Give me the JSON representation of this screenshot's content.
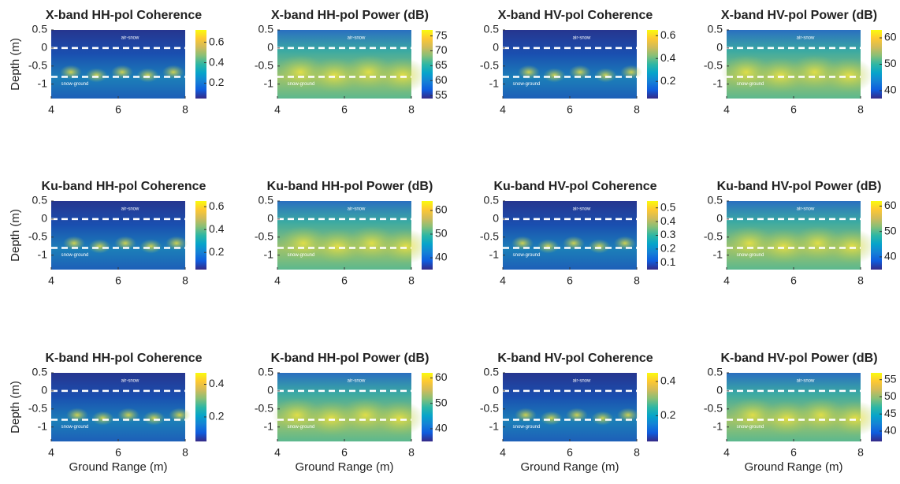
{
  "colormap": [
    "#352a87",
    "#0f5cdd",
    "#1481d6",
    "#06a4ca",
    "#2eb7a4",
    "#87bf77",
    "#d1bb59",
    "#fec832",
    "#f9fb0e"
  ],
  "chart_data": [
    {
      "type": "heatmap",
      "kind": "coherence",
      "title": "X-band HH-pol Coherence",
      "ylabel": "Depth (m)",
      "xlim": [
        4,
        8
      ],
      "xticks": [
        4,
        6,
        8
      ],
      "ylim": [
        -1.4,
        0.5
      ],
      "yticks": [
        0.5,
        0,
        -0.5,
        -1
      ],
      "clim": [
        0.05,
        0.72
      ],
      "cticks": [
        0.2,
        0.4,
        0.6
      ],
      "lines": [
        {
          "label": "air-snow",
          "y": 0
        },
        {
          "label": "snow-ground",
          "y": -0.8
        }
      ]
    },
    {
      "type": "heatmap",
      "kind": "power",
      "title": "X-band HH-pol Power (dB)",
      "xlim": [
        4,
        8
      ],
      "xticks": [
        4,
        6,
        8
      ],
      "ylim": [
        -1.4,
        0.5
      ],
      "yticks": [
        0.5,
        0,
        -0.5,
        -1
      ],
      "clim": [
        54,
        77
      ],
      "cticks": [
        55,
        60,
        65,
        70,
        75
      ],
      "lines": [
        {
          "label": "air-snow",
          "y": 0
        },
        {
          "label": "snow-ground",
          "y": -0.8
        }
      ]
    },
    {
      "type": "heatmap",
      "kind": "coherence",
      "title": "X-band HV-pol Coherence",
      "xlim": [
        4,
        8
      ],
      "xticks": [
        4,
        6,
        8
      ],
      "ylim": [
        -1.4,
        0.5
      ],
      "yticks": [
        0.5,
        0,
        -0.5,
        -1
      ],
      "clim": [
        0.05,
        0.65
      ],
      "cticks": [
        0.2,
        0.4,
        0.6
      ],
      "lines": [
        {
          "label": "air-snow",
          "y": 0
        },
        {
          "label": "snow-ground",
          "y": -0.8
        }
      ]
    },
    {
      "type": "heatmap",
      "kind": "power",
      "title": "X-band HV-pol Power (dB)",
      "xlim": [
        4,
        8
      ],
      "xticks": [
        4,
        6,
        8
      ],
      "ylim": [
        -1.4,
        0.5
      ],
      "yticks": [
        0.5,
        0,
        -0.5,
        -1
      ],
      "clim": [
        37,
        63
      ],
      "cticks": [
        40,
        50,
        60
      ],
      "lines": [
        {
          "label": "air-snow",
          "y": 0
        },
        {
          "label": "snow-ground",
          "y": -0.8
        }
      ]
    },
    {
      "type": "heatmap",
      "kind": "coherence",
      "title": "Ku-band HH-pol Coherence",
      "ylabel": "Depth (m)",
      "xlim": [
        4,
        8
      ],
      "xticks": [
        4,
        6,
        8
      ],
      "ylim": [
        -1.4,
        0.5
      ],
      "yticks": [
        0.5,
        0,
        -0.5,
        -1
      ],
      "clim": [
        0.05,
        0.65
      ],
      "cticks": [
        0.2,
        0.4,
        0.6
      ],
      "lines": [
        {
          "label": "air-snow",
          "y": 0
        },
        {
          "label": "snow-ground",
          "y": -0.8
        }
      ]
    },
    {
      "type": "heatmap",
      "kind": "power",
      "title": "Ku-band HH-pol Power (dB)",
      "xlim": [
        4,
        8
      ],
      "xticks": [
        4,
        6,
        8
      ],
      "ylim": [
        -1.4,
        0.5
      ],
      "yticks": [
        0.5,
        0,
        -0.5,
        -1
      ],
      "clim": [
        35,
        64
      ],
      "cticks": [
        40,
        50,
        60
      ],
      "lines": [
        {
          "label": "air-snow",
          "y": 0
        },
        {
          "label": "snow-ground",
          "y": -0.8
        }
      ]
    },
    {
      "type": "heatmap",
      "kind": "coherence",
      "title": "Ku-band HV-pol Coherence",
      "xlim": [
        4,
        8
      ],
      "xticks": [
        4,
        6,
        8
      ],
      "ylim": [
        -1.4,
        0.5
      ],
      "yticks": [
        0.5,
        0,
        -0.5,
        -1
      ],
      "clim": [
        0.05,
        0.55
      ],
      "cticks": [
        0.1,
        0.2,
        0.3,
        0.4,
        0.5
      ],
      "lines": [
        {
          "label": "air-snow",
          "y": 0
        },
        {
          "label": "snow-ground",
          "y": -0.8
        }
      ]
    },
    {
      "type": "heatmap",
      "kind": "power",
      "title": "Ku-band HV-pol Power (dB)",
      "xlim": [
        4,
        8
      ],
      "xticks": [
        4,
        6,
        8
      ],
      "ylim": [
        -1.4,
        0.5
      ],
      "yticks": [
        0.5,
        0,
        -0.5,
        -1
      ],
      "clim": [
        35,
        62
      ],
      "cticks": [
        40,
        50,
        60
      ],
      "lines": [
        {
          "label": "air-snow",
          "y": 0
        },
        {
          "label": "snow-ground",
          "y": -0.8
        }
      ]
    },
    {
      "type": "heatmap",
      "kind": "coherence",
      "title": "K-band HH-pol Coherence",
      "ylabel": "Depth (m)",
      "xlabel": "Ground Range (m)",
      "xlim": [
        4,
        8
      ],
      "xticks": [
        4,
        6,
        8
      ],
      "ylim": [
        -1.4,
        0.5
      ],
      "yticks": [
        0.5,
        0,
        -0.5,
        -1
      ],
      "clim": [
        0.05,
        0.47
      ],
      "cticks": [
        0.2,
        0.4
      ],
      "lines": [
        {
          "label": "air-snow",
          "y": 0
        },
        {
          "label": "snow-ground",
          "y": -0.8
        }
      ]
    },
    {
      "type": "heatmap",
      "kind": "power",
      "title": "K-band HH-pol Power (dB)",
      "xlabel": "Ground Range (m)",
      "xlim": [
        4,
        8
      ],
      "xticks": [
        4,
        6,
        8
      ],
      "ylim": [
        -1.4,
        0.5
      ],
      "yticks": [
        0.5,
        0,
        -0.5,
        -1
      ],
      "clim": [
        35,
        62
      ],
      "cticks": [
        40,
        50,
        60
      ],
      "lines": [
        {
          "label": "air-snow",
          "y": 0
        },
        {
          "label": "snow-ground",
          "y": -0.8
        }
      ]
    },
    {
      "type": "heatmap",
      "kind": "coherence",
      "title": "K-band HV-pol Coherence",
      "xlabel": "Ground Range (m)",
      "xlim": [
        4,
        8
      ],
      "xticks": [
        4,
        6,
        8
      ],
      "ylim": [
        -1.4,
        0.5
      ],
      "yticks": [
        0.5,
        0,
        -0.5,
        -1
      ],
      "clim": [
        0.05,
        0.45
      ],
      "cticks": [
        0.2,
        0.4
      ],
      "lines": [
        {
          "label": "air-snow",
          "y": 0
        },
        {
          "label": "snow-ground",
          "y": -0.8
        }
      ]
    },
    {
      "type": "heatmap",
      "kind": "power",
      "title": "K-band HV-pol Power (dB)",
      "xlabel": "Ground Range (m)",
      "xlim": [
        4,
        8
      ],
      "xticks": [
        4,
        6,
        8
      ],
      "ylim": [
        -1.4,
        0.5
      ],
      "yticks": [
        0.5,
        0,
        -0.5,
        -1
      ],
      "clim": [
        37,
        57
      ],
      "cticks": [
        40,
        45,
        50,
        55
      ],
      "lines": [
        {
          "label": "air-snow",
          "y": 0
        },
        {
          "label": "snow-ground",
          "y": -0.8
        }
      ]
    }
  ]
}
